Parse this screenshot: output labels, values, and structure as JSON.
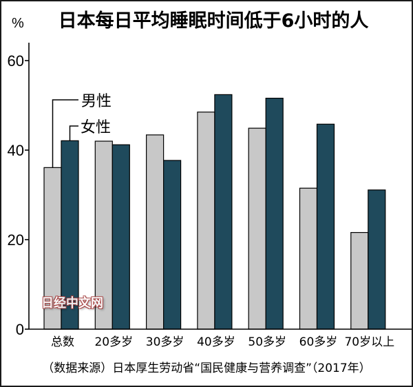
{
  "chart_data": {
    "type": "bar",
    "title": "日本每日平均睡眠时间低于6小时的人",
    "ylabel": "%",
    "categories": [
      "总数",
      "20多岁",
      "30多岁",
      "40多岁",
      "50多岁",
      "60多岁",
      "70岁以上"
    ],
    "series": [
      {
        "name": "男性",
        "color": "#c8c8c8",
        "values": [
          36.1,
          42.0,
          43.4,
          48.5,
          44.9,
          31.5,
          21.6
        ]
      },
      {
        "name": "女性",
        "color": "#1f4a5c",
        "values": [
          42.1,
          41.2,
          37.7,
          52.4,
          51.6,
          45.8,
          31.1
        ]
      }
    ],
    "ylim": [
      0,
      64
    ],
    "yticks": [
      0,
      20,
      40,
      60
    ],
    "grid": false,
    "legend": "top-left"
  },
  "source": "（数据来源）日本厚生劳动省“国民健康与营养调查”（2017年）",
  "watermark": "日经中文网"
}
